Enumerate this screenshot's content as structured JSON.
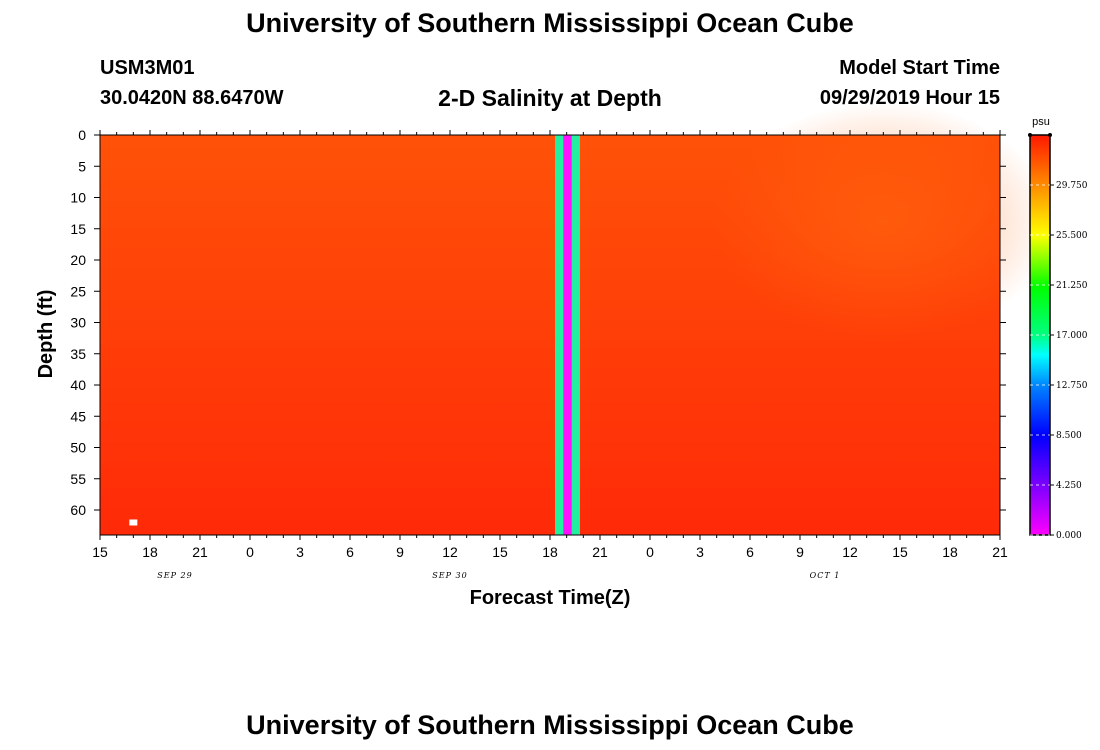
{
  "header": {
    "title": "University of Southern Mississippi Ocean Cube",
    "station": "USM3M01",
    "location": "30.0420N 88.6470W",
    "plot_title": "2-D Salinity at Depth",
    "model_start_label": "Model Start Time",
    "model_start_value": "09/29/2019 Hour 15"
  },
  "footer": {
    "title": "University of Southern Mississippi Ocean Cube"
  },
  "colors": {
    "field_surface": "#ff5208",
    "field_bottom": "#ff2a08",
    "band_outer": "#22f0a0",
    "band_inner": "#ff10ff"
  },
  "chart_data": {
    "type": "heatmap",
    "title": "2-D Salinity at Depth",
    "xlabel": "Forecast Time(Z)",
    "ylabel": "Depth (ft)",
    "x_hours_range": [
      0,
      54
    ],
    "x_tick_hours": [
      0,
      3,
      6,
      9,
      12,
      15,
      18,
      21,
      24,
      27,
      30,
      33,
      36,
      39,
      42,
      45,
      48,
      51,
      54
    ],
    "x_tick_labels": [
      "15",
      "18",
      "21",
      "0",
      "3",
      "6",
      "9",
      "12",
      "15",
      "18",
      "21",
      "0",
      "3",
      "6",
      "9",
      "12",
      "15",
      "18",
      "21"
    ],
    "date_labels": [
      {
        "hour": 4.5,
        "text": "SEP 29"
      },
      {
        "hour": 21,
        "text": "SEP 30"
      },
      {
        "hour": 43.5,
        "text": "OCT 1"
      }
    ],
    "ylim": [
      0,
      64
    ],
    "y_ticks": [
      0,
      5,
      10,
      15,
      20,
      25,
      30,
      35,
      40,
      45,
      50,
      55,
      60
    ],
    "y_tick_labels": [
      "0",
      "5",
      "10",
      "15",
      "20",
      "25",
      "30",
      "35",
      "40",
      "45",
      "50",
      "55",
      "60"
    ],
    "salinity_surface_psu": 31.5,
    "salinity_bottom_psu": 33.3,
    "missing_band_hours": {
      "start": 27.3,
      "end": 28.8,
      "inner_start": 27.8,
      "inner_end": 28.3
    },
    "marker": {
      "hour": 2,
      "depth": 62
    },
    "colorbar": {
      "unit": "psu",
      "range": [
        0,
        34
      ],
      "ticks": [
        0.0,
        4.25,
        8.5,
        12.75,
        17.0,
        21.25,
        25.5,
        29.75
      ],
      "tick_labels": [
        "0.000",
        "4.250",
        "8.500",
        "12.750",
        "17.000",
        "21.250",
        "25.500",
        "29.750"
      ]
    }
  }
}
